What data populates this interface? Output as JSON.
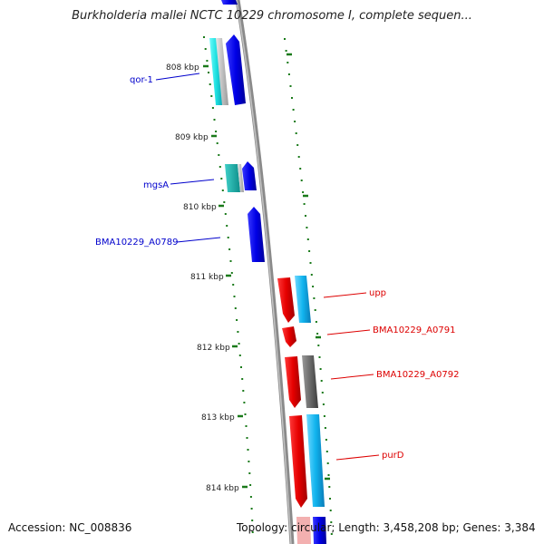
{
  "title": "Burkholderia mallei NCTC 10229 chromosome I, complete sequen...",
  "footer": {
    "accession": "Accession: NC_008836",
    "summary": "Topology: circular; Length: 3,458,208 bp; Genes: 3,384"
  },
  "ticks": [
    "808 kbp",
    "809 kbp",
    "810 kbp",
    "811 kbp",
    "812 kbp",
    "813 kbp",
    "814 kbp"
  ],
  "gene_labels": {
    "left": [
      "qor-1",
      "mgsA",
      "BMA10229_A0789"
    ],
    "right": [
      "upp",
      "BMA10229_A0791",
      "BMA10229_A0792",
      "purD"
    ]
  },
  "colors": {
    "forward_gene": "#0000ee",
    "forward_cds": "#00e5e5",
    "reverse_gene": "#ee0000",
    "reverse_cds": "#00bfff",
    "pseudo": "#555555",
    "tick_mark": "#1a7a1a",
    "backbone": "#888888",
    "left_label": "#0000cc",
    "right_label": "#dd0000"
  }
}
